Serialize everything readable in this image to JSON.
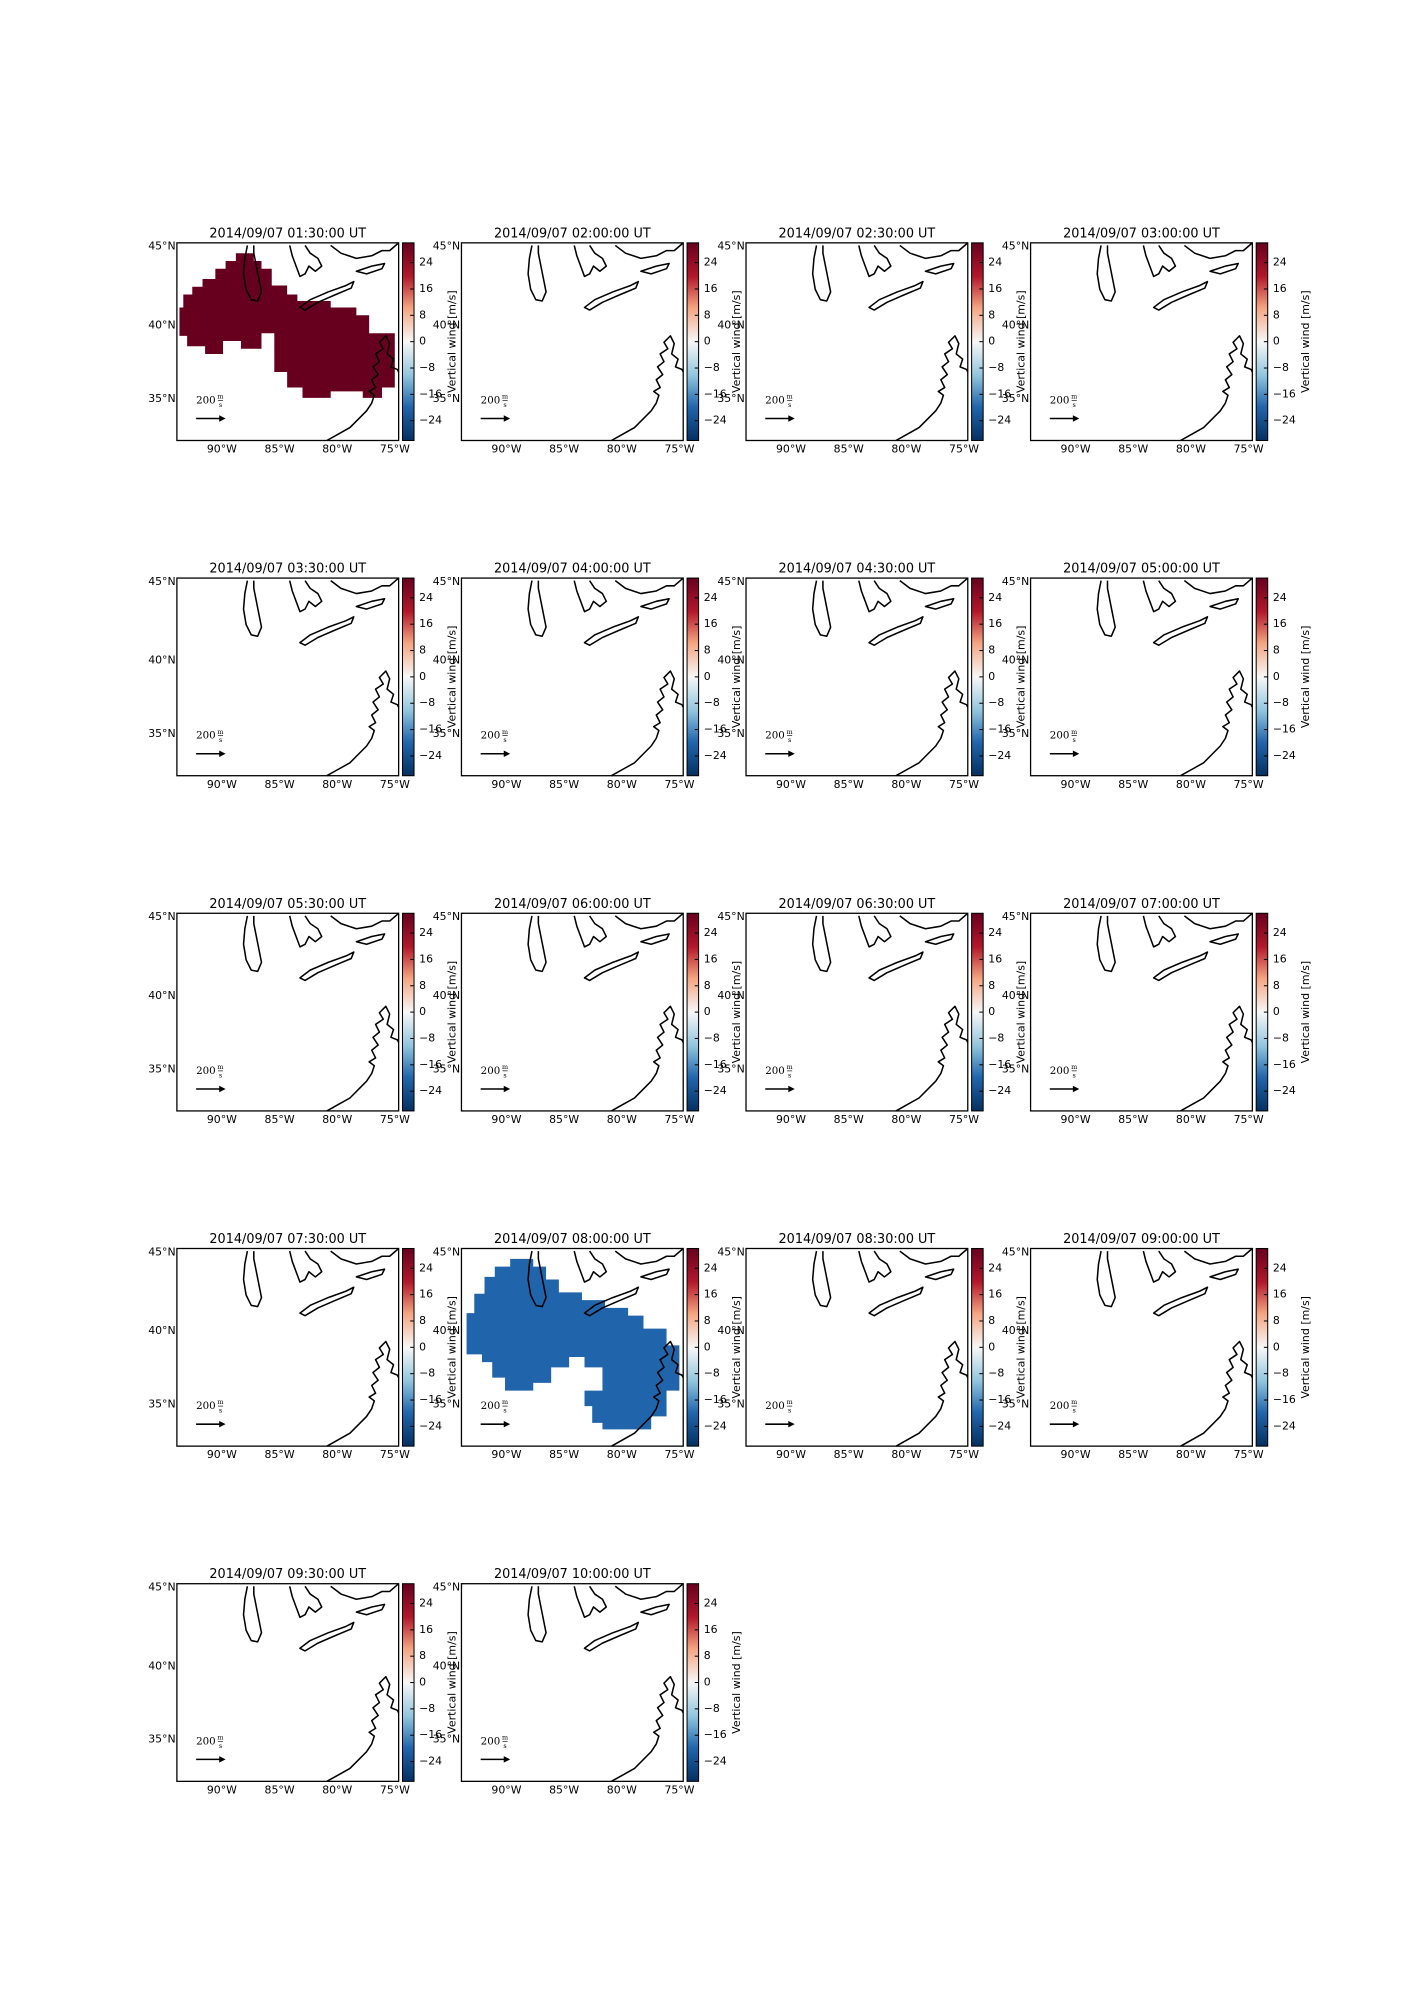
{
  "figure": {
    "panels": [
      {
        "title": "2014/09/07 01:30:00 UT",
        "vertical_wind": 30
      },
      {
        "title": "2014/09/07 02:00:00 UT"
      },
      {
        "title": "2014/09/07 02:30:00 UT"
      },
      {
        "title": "2014/09/07 03:00:00 UT"
      },
      {
        "title": "2014/09/07 03:30:00 UT"
      },
      {
        "title": "2014/09/07 04:00:00 UT"
      },
      {
        "title": "2014/09/07 04:30:00 UT"
      },
      {
        "title": "2014/09/07 05:00:00 UT"
      },
      {
        "title": "2014/09/07 05:30:00 UT"
      },
      {
        "title": "2014/09/07 06:00:00 UT"
      },
      {
        "title": "2014/09/07 06:30:00 UT"
      },
      {
        "title": "2014/09/07 07:00:00 UT"
      },
      {
        "title": "2014/09/07 07:30:00 UT"
      },
      {
        "title": "2014/09/07 08:00:00 UT",
        "vertical_wind": -20
      },
      {
        "title": "2014/09/07 08:30:00 UT"
      },
      {
        "title": "2014/09/07 09:00:00 UT"
      },
      {
        "title": "2014/09/07 09:30:00 UT"
      },
      {
        "title": "2014/09/07 10:00:00 UT"
      }
    ],
    "lat_ticks": [
      {
        "value": 45,
        "label": "45°N"
      },
      {
        "value": 40,
        "label": "40°N"
      },
      {
        "value": 35,
        "label": "35°N"
      }
    ],
    "lon_ticks": [
      {
        "value": -90,
        "label": "90°W"
      },
      {
        "value": -85,
        "label": "85°W"
      },
      {
        "value": -80,
        "label": "80°W"
      },
      {
        "value": -75,
        "label": "75°W"
      }
    ],
    "colorbar": {
      "label": "Vertical wind [m/s]",
      "lim": [
        -30,
        30
      ],
      "ticks": [
        24,
        16,
        8,
        0,
        {
          "value": -8,
          "label": "−8"
        },
        {
          "value": -16,
          "label": "−16"
        },
        {
          "value": -24,
          "label": "−24"
        }
      ]
    },
    "quiver_key": {
      "value": 200,
      "unit_num": "m",
      "unit_den": "s"
    }
  }
}
